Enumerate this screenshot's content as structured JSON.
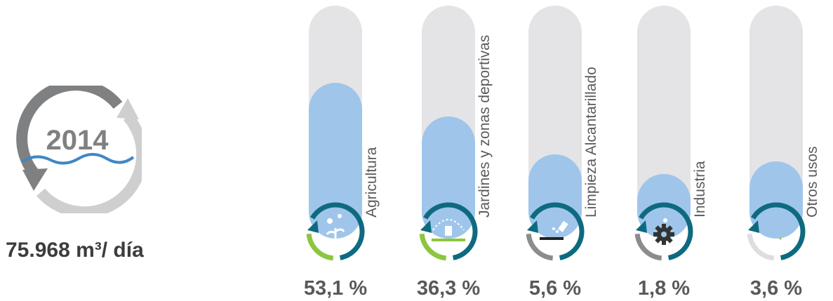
{
  "header": {
    "year": "2014",
    "total_flow": "75.968 m³/ día"
  },
  "colors": {
    "track": "#e4e4e6",
    "fill": "#9fc6ea",
    "ring_green": "#8cc63f",
    "ring_gray": "#8c8c8c",
    "ring_light": "#dedede",
    "arrow_teal": "#0e6a80",
    "text_dark": "#595959"
  },
  "chart_data": {
    "type": "bar",
    "categories": [
      "Agricultura",
      "Jardines y zonas deportivas",
      "Limpieza Alcantarillado",
      "Industria",
      "Otros usos"
    ],
    "values": [
      53.1,
      36.3,
      5.6,
      1.8,
      3.6
    ],
    "value_labels": [
      "53,1 %",
      "36,3 %",
      "5,6 %",
      "1,8 %",
      "3,6 %"
    ],
    "icons": [
      "water-drops-plant-icon",
      "sprinkler-icon",
      "hose-nozzle-icon",
      "gear-drop-icon",
      "small-drop-icon"
    ],
    "ring_colors": [
      "#8cc63f",
      "#8cc63f",
      "#8c8c8c",
      "#8c8c8c",
      "#dedede"
    ],
    "unit": "%",
    "grid": false,
    "legend": "none"
  }
}
